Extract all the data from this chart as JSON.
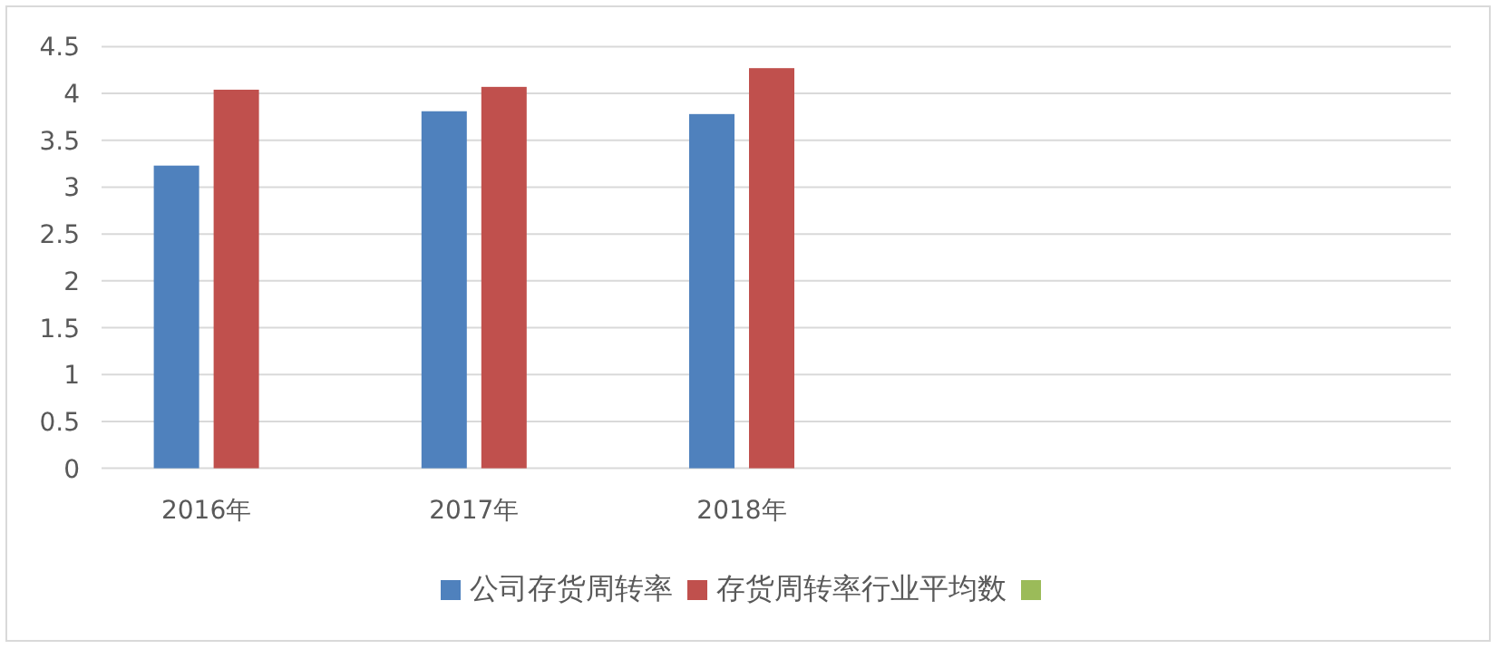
{
  "chart_data": {
    "type": "bar",
    "categories": [
      "2016年",
      "2017年",
      "2018年",
      null,
      null
    ],
    "series": [
      {
        "name": "公司存货周转率",
        "color": "#4f81bd",
        "values": [
          3.23,
          3.81,
          3.78,
          null,
          null
        ]
      },
      {
        "name": "存货周转率行业平均数",
        "color": "#c0504d",
        "values": [
          4.04,
          4.07,
          4.27,
          null,
          null
        ]
      },
      {
        "color": "#9bbb59",
        "values": [
          null,
          null,
          null,
          null,
          null
        ]
      }
    ],
    "ylim": [
      0,
      4.5
    ],
    "yticks": [
      0,
      0.5,
      1,
      1.5,
      2,
      2.5,
      3,
      3.5,
      4,
      4.5
    ],
    "grid": "y",
    "legend": "bottom"
  }
}
